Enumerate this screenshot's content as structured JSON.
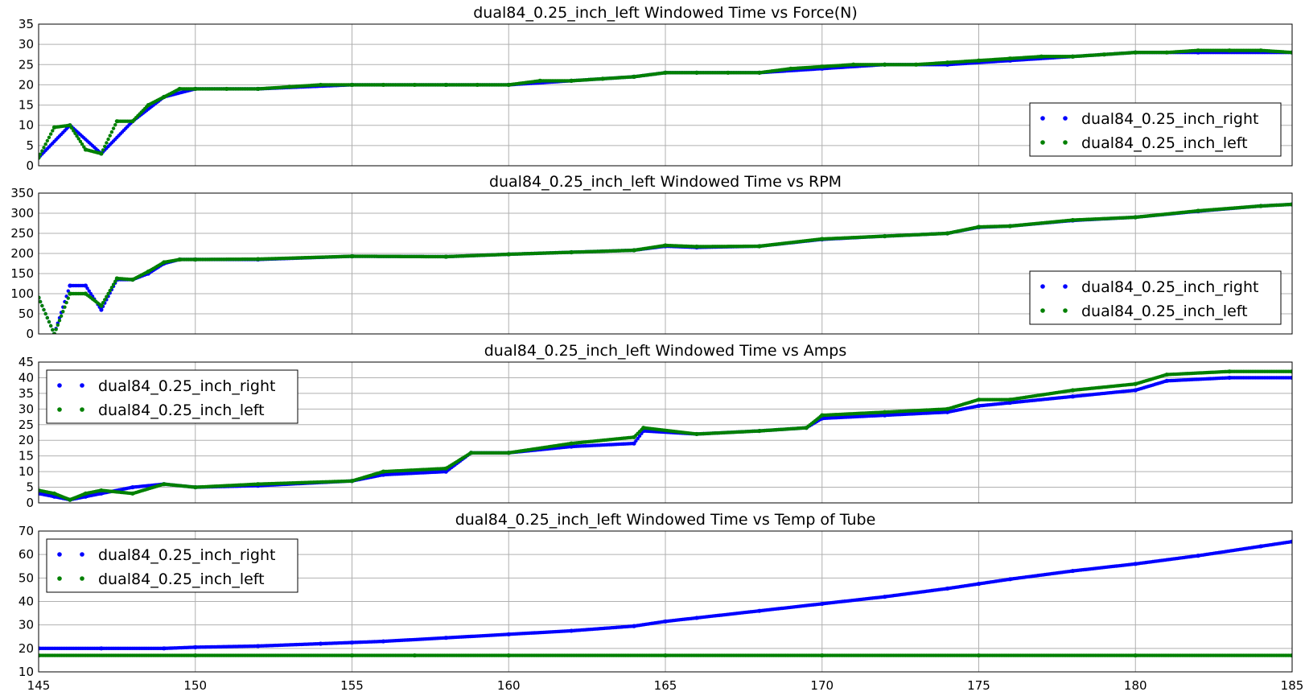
{
  "chart_data": [
    {
      "type": "scatter",
      "title": "dual84_0.25_inch_left Windowed Time vs Force(N)",
      "xlabel": "",
      "ylabel": "",
      "xlim": [
        145,
        185
      ],
      "ylim": [
        0,
        35
      ],
      "yticks": [
        "0",
        "5",
        "10",
        "15",
        "20",
        "25",
        "30",
        "35"
      ],
      "grid": true,
      "show_xticklabels": false,
      "legend": {
        "position": "lower-right",
        "entries": [
          "dual84_0.25_inch_right",
          "dual84_0.25_inch_left"
        ]
      },
      "series": [
        {
          "name": "dual84_0.25_inch_right",
          "color": "#0000ff",
          "x": [
            145,
            146,
            147,
            148,
            149,
            150,
            152,
            155,
            158,
            160,
            162,
            164,
            165,
            166,
            168,
            170,
            172,
            174,
            176,
            178,
            180,
            182,
            185
          ],
          "y": [
            2,
            10,
            3,
            11,
            17,
            19,
            19,
            20,
            20,
            20,
            21,
            22,
            23,
            23,
            23,
            24,
            25,
            25,
            26,
            27,
            28,
            28,
            28
          ]
        },
        {
          "name": "dual84_0.25_inch_left",
          "color": "#008000",
          "x": [
            145,
            145.5,
            146,
            146.5,
            147,
            147.5,
            148,
            148.5,
            149,
            149.5,
            150,
            151,
            152,
            153,
            154,
            155,
            156,
            157,
            158,
            159,
            160,
            161,
            162,
            163,
            164,
            165,
            166,
            167,
            168,
            169,
            170,
            171,
            172,
            173,
            174,
            175,
            176,
            177,
            178,
            179,
            180,
            181,
            182,
            183,
            184,
            185
          ],
          "y": [
            2,
            9.5,
            10,
            4,
            3,
            11,
            11,
            15,
            17,
            19,
            19,
            19,
            19,
            19.5,
            20,
            20,
            20,
            20,
            20,
            20,
            20,
            21,
            21,
            21.5,
            22,
            23,
            23,
            23,
            23,
            24,
            24.5,
            25,
            25,
            25,
            25.5,
            26,
            26.5,
            27,
            27,
            27.5,
            28,
            28,
            28.5,
            28.5,
            28.5,
            28
          ]
        }
      ]
    },
    {
      "type": "scatter",
      "title": "dual84_0.25_inch_left Windowed Time vs RPM",
      "xlabel": "",
      "ylabel": "",
      "xlim": [
        145,
        185
      ],
      "ylim": [
        0,
        350
      ],
      "yticks": [
        "0",
        "50",
        "100",
        "150",
        "200",
        "250",
        "300",
        "350"
      ],
      "grid": true,
      "show_xticklabels": false,
      "legend": {
        "position": "lower-right",
        "entries": [
          "dual84_0.25_inch_right",
          "dual84_0.25_inch_left"
        ]
      },
      "series": [
        {
          "name": "dual84_0.25_inch_right",
          "color": "#0000ff",
          "x": [
            145,
            145.5,
            146,
            146.5,
            147,
            147.5,
            148,
            148.5,
            149,
            149.5,
            150,
            152,
            155,
            158,
            160,
            162,
            164,
            165,
            166,
            168,
            170,
            172,
            174,
            175,
            176,
            178,
            180,
            182,
            184,
            185
          ],
          "y": [
            90,
            0,
            120,
            120,
            60,
            135,
            135,
            150,
            175,
            185,
            185,
            185,
            193,
            192,
            198,
            203,
            208,
            218,
            215,
            218,
            235,
            243,
            250,
            265,
            268,
            282,
            290,
            305,
            318,
            322
          ]
        },
        {
          "name": "dual84_0.25_inch_left",
          "color": "#008000",
          "x": [
            145,
            145.5,
            146,
            146.5,
            147,
            147.5,
            148,
            148.5,
            149,
            149.5,
            150,
            152,
            155,
            158,
            160,
            162,
            164,
            165,
            166,
            168,
            170,
            172,
            174,
            175,
            176,
            178,
            180,
            182,
            184,
            185
          ],
          "y": [
            90,
            0,
            100,
            100,
            70,
            138,
            135,
            155,
            178,
            185,
            185,
            186,
            193,
            192,
            198,
            203,
            208,
            220,
            217,
            218,
            236,
            243,
            250,
            266,
            268,
            283,
            290,
            306,
            318,
            322
          ]
        }
      ]
    },
    {
      "type": "scatter",
      "title": "dual84_0.25_inch_left Windowed Time vs Amps",
      "xlabel": "",
      "ylabel": "",
      "xlim": [
        145,
        185
      ],
      "ylim": [
        0,
        45
      ],
      "yticks": [
        "0",
        "5",
        "10",
        "15",
        "20",
        "25",
        "30",
        "35",
        "40",
        "45"
      ],
      "grid": true,
      "show_xticklabels": false,
      "legend": {
        "position": "upper-left",
        "entries": [
          "dual84_0.25_inch_right",
          "dual84_0.25_inch_left"
        ]
      },
      "series": [
        {
          "name": "dual84_0.25_inch_right",
          "color": "#0000ff",
          "x": [
            145,
            145.5,
            146,
            146.5,
            147,
            148,
            149,
            150,
            152,
            155,
            156,
            158,
            158.8,
            160,
            162,
            164,
            164.3,
            166,
            168,
            169.5,
            170,
            172,
            174,
            175,
            176,
            178,
            180,
            181,
            183,
            185
          ],
          "y": [
            3,
            2,
            1,
            2,
            3,
            5,
            6,
            5,
            5.5,
            7,
            9,
            10,
            16,
            16,
            18,
            19,
            23,
            22,
            23,
            24,
            27,
            28,
            29,
            31,
            32,
            34,
            36,
            39,
            40,
            40
          ]
        },
        {
          "name": "dual84_0.25_inch_left",
          "color": "#008000",
          "x": [
            145,
            145.5,
            146,
            146.5,
            147,
            148,
            149,
            150,
            152,
            155,
            156,
            158,
            158.8,
            160,
            162,
            164,
            164.3,
            166,
            168,
            169.5,
            170,
            172,
            174,
            175,
            176,
            178,
            180,
            181,
            183,
            185
          ],
          "y": [
            4,
            3,
            1,
            3,
            4,
            3,
            6,
            5,
            6,
            7,
            10,
            11,
            16,
            16,
            19,
            21,
            24,
            22,
            23,
            24,
            28,
            29,
            30,
            33,
            33,
            36,
            38,
            41,
            42,
            42
          ]
        }
      ]
    },
    {
      "type": "scatter",
      "title": "dual84_0.25_inch_left Windowed Time vs Temp of Tube",
      "xlabel": "",
      "ylabel": "",
      "xlim": [
        145,
        185
      ],
      "ylim": [
        10,
        70
      ],
      "yticks": [
        "10",
        "20",
        "30",
        "40",
        "50",
        "60",
        "70"
      ],
      "xticks": [
        "145",
        "150",
        "155",
        "160",
        "165",
        "170",
        "175",
        "180",
        "185"
      ],
      "grid": true,
      "show_xticklabels": true,
      "legend": {
        "position": "upper-left",
        "entries": [
          "dual84_0.25_inch_right",
          "dual84_0.25_inch_left"
        ]
      },
      "series": [
        {
          "name": "dual84_0.25_inch_right",
          "color": "#0000ff",
          "x": [
            145,
            147,
            149,
            150,
            152,
            154,
            155,
            156,
            158,
            160,
            162,
            164,
            165,
            166,
            168,
            170,
            172,
            174,
            175,
            176,
            178,
            180,
            182,
            184,
            185
          ],
          "y": [
            20,
            20,
            20,
            20.5,
            21,
            22,
            22.5,
            23,
            24.5,
            26,
            27.5,
            29.5,
            31.5,
            33,
            36,
            39,
            42,
            45.5,
            47.5,
            49.5,
            53,
            56,
            59.5,
            63.5,
            65.5
          ]
        },
        {
          "name": "dual84_0.25_inch_left",
          "color": "#008000",
          "x": [
            145,
            150,
            155,
            157,
            160,
            165,
            170,
            175,
            180,
            185
          ],
          "y": [
            17,
            17,
            17,
            17,
            17,
            17,
            17,
            17,
            17,
            17
          ]
        }
      ]
    }
  ]
}
